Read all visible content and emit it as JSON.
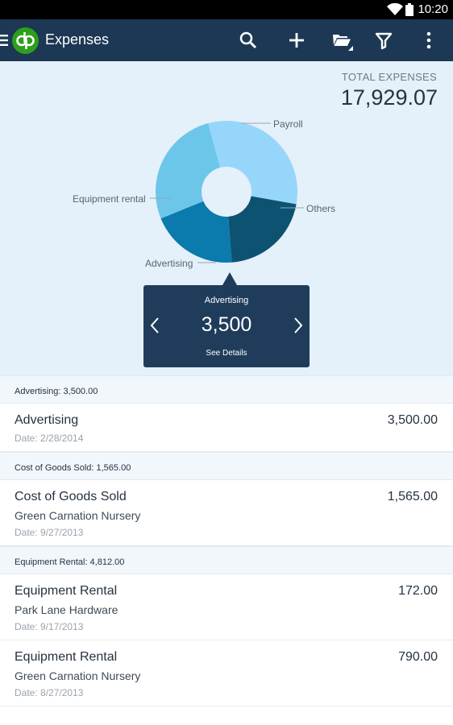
{
  "status_bar": {
    "time": "10:20"
  },
  "app_bar": {
    "title": "Expenses"
  },
  "summary": {
    "total_label": "TOTAL EXPENSES",
    "total_value": "17,929.07"
  },
  "chart_data": {
    "type": "pie",
    "style": "donut",
    "labels": [
      "Payroll",
      "Others",
      "Advertising",
      "Equipment rental"
    ],
    "colors": [
      "#96d6fb",
      "#0e5272",
      "#0b7aac",
      "#6cc6ea"
    ],
    "slices": [
      {
        "label": "Payroll",
        "share": 0.32,
        "color": "#96d6fb"
      },
      {
        "label": "Others",
        "share": 0.21,
        "color": "#0e5272"
      },
      {
        "label": "Advertising",
        "share": 0.2,
        "color": "#0b7aac"
      },
      {
        "label": "Equipment rental",
        "share": 0.27,
        "color": "#6cc6ea"
      }
    ]
  },
  "tooltip": {
    "name": "Advertising",
    "value": "3,500",
    "link": "See Details"
  },
  "list": {
    "groups": [
      {
        "header": "Advertising: 3,500.00",
        "rows": [
          {
            "title": "Advertising",
            "subtitle": "",
            "date": "Date: 2/28/2014",
            "amount": "3,500.00"
          }
        ]
      },
      {
        "header": "Cost of Goods Sold: 1,565.00",
        "rows": [
          {
            "title": "Cost of Goods Sold",
            "subtitle": "Green Carnation Nursery",
            "date": "Date: 9/27/2013",
            "amount": "1,565.00"
          }
        ]
      },
      {
        "header": "Equipment Rental: 4,812.00",
        "rows": [
          {
            "title": "Equipment Rental",
            "subtitle": "Park Lane Hardware",
            "date": "Date: 9/17/2013",
            "amount": "172.00"
          },
          {
            "title": "Equipment Rental",
            "subtitle": "Green Carnation Nursery",
            "date": "Date: 8/27/2013",
            "amount": "790.00"
          }
        ]
      }
    ]
  },
  "icons": {
    "menu": "menu-icon",
    "logo": "quickbooks-logo-icon",
    "search": "search-icon",
    "add": "plus-icon",
    "folder": "folder-open-icon",
    "filter": "filter-icon",
    "overflow": "more-vert-icon"
  }
}
